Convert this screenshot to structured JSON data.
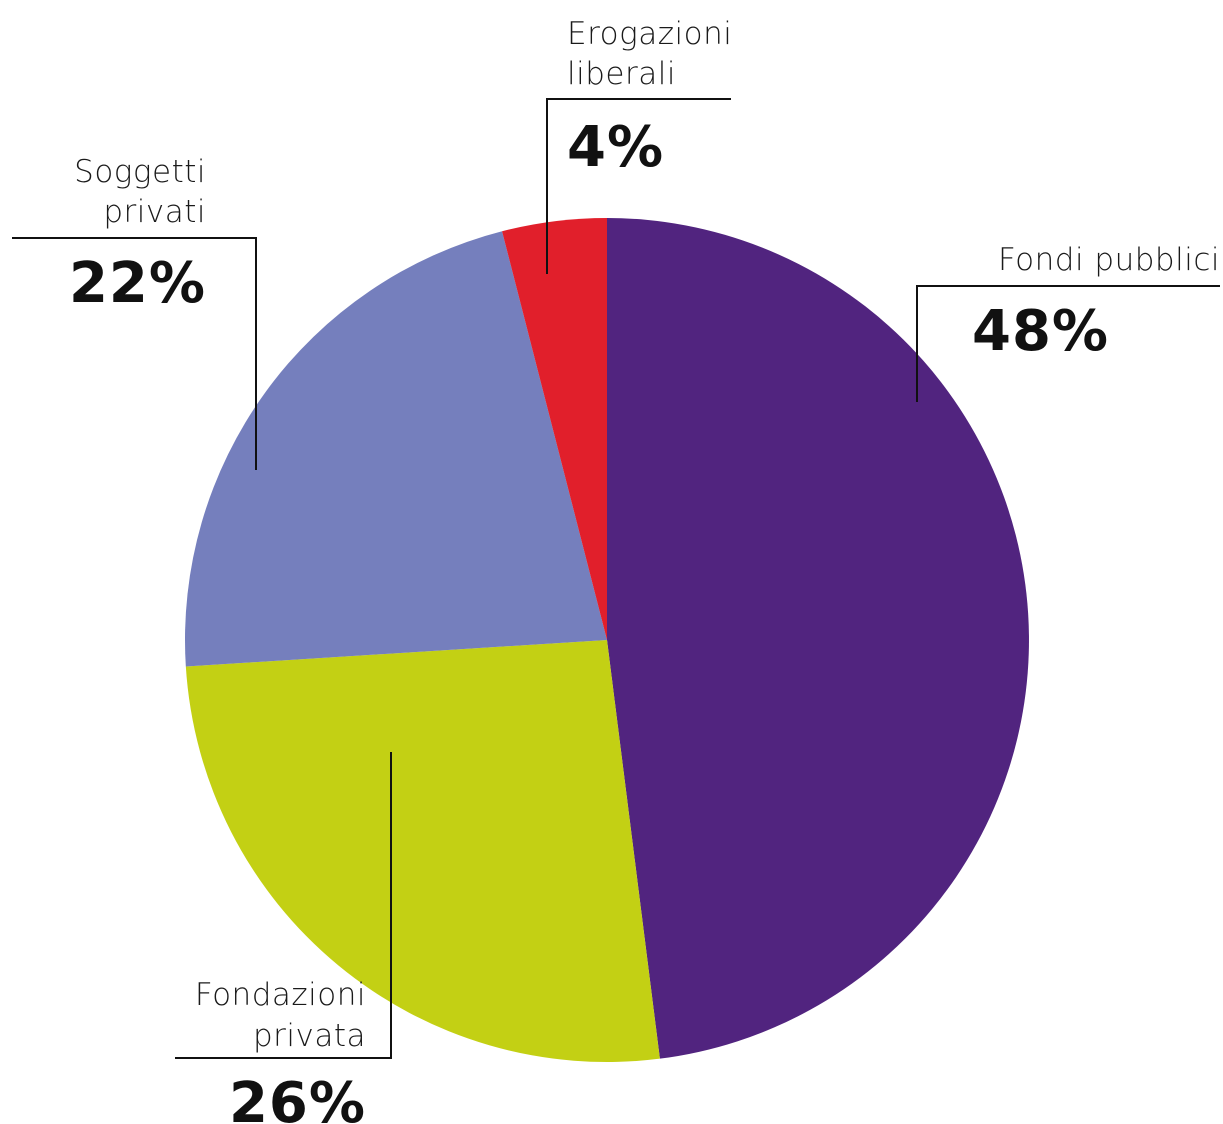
{
  "chart_data": {
    "type": "pie",
    "title": "",
    "slices": [
      {
        "key": "fondi",
        "label_lines": [
          "Fondi pubblici"
        ],
        "value": 48,
        "value_label": "48%",
        "color": "#51247f"
      },
      {
        "key": "fondazioni",
        "label_lines": [
          "Fondazioni",
          "privata"
        ],
        "value": 26,
        "value_label": "26%",
        "color": "#c3d014"
      },
      {
        "key": "soggetti",
        "label_lines": [
          "Soggetti",
          "privati"
        ],
        "value": 22,
        "value_label": "22%",
        "color": "#757fbd"
      },
      {
        "key": "erogazioni",
        "label_lines": [
          "Erogazioni",
          "liberali"
        ],
        "value": 4,
        "value_label": "4%",
        "color": "#e11f2b"
      }
    ],
    "start_angle_deg": 0,
    "direction": "clockwise",
    "legend": "none"
  }
}
